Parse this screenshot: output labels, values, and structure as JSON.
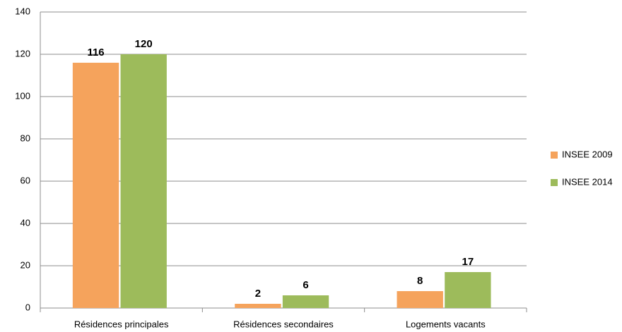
{
  "chart_data": {
    "type": "bar",
    "categories": [
      "Résidences principales",
      "Résidences secondaires",
      "Logements vacants"
    ],
    "series": [
      {
        "name": "INSEE 2009",
        "color": "#f5a35c",
        "values": [
          116,
          2,
          8
        ]
      },
      {
        "name": "INSEE 2014",
        "color": "#9dbb5b",
        "values": [
          120,
          6,
          17
        ]
      }
    ],
    "ylim": [
      0,
      140
    ],
    "yticks": [
      0,
      20,
      40,
      60,
      80,
      100,
      120,
      140
    ],
    "grid": true,
    "legend": "right"
  }
}
